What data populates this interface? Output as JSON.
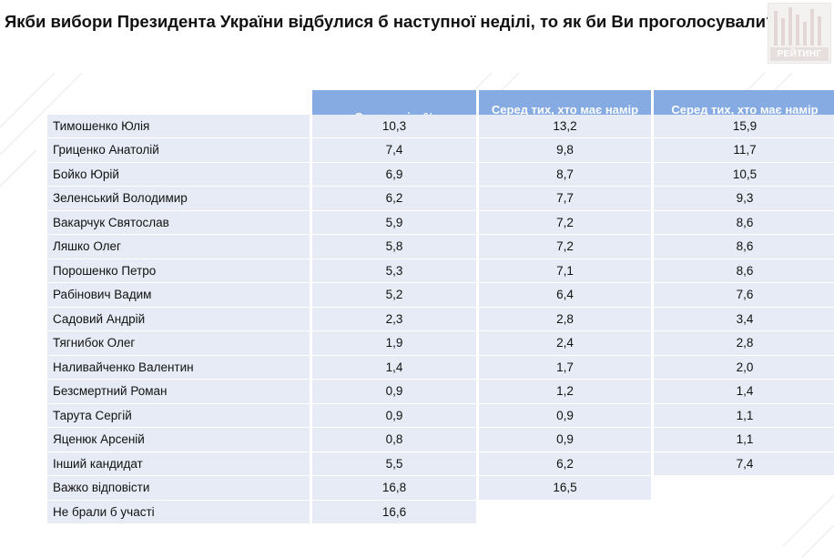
{
  "title": "Якби вибори Президента України відбулися б наступної неділі, то як би Ви проголосували?",
  "logo": {
    "text": "РЕЙТИНГ"
  },
  "table": {
    "headers": [
      "Серед усіх, %",
      "Серед тих, хто має намір голосувати",
      "Серед тих, хто має намір голосувати та визначився"
    ],
    "rows": [
      {
        "name": "Тимошенко Юлія",
        "all": "10,3",
        "voters": "13,2",
        "decided": "15,9"
      },
      {
        "name": "Гриценко Анатолій",
        "all": "7,4",
        "voters": "9,8",
        "decided": "11,7"
      },
      {
        "name": "Бойко Юрій",
        "all": "6,9",
        "voters": "8,7",
        "decided": "10,5"
      },
      {
        "name": "Зеленський Володимир",
        "all": "6,2",
        "voters": "7,7",
        "decided": "9,3"
      },
      {
        "name": "Вакарчук Святослав",
        "all": "5,9",
        "voters": "7,2",
        "decided": "8,6"
      },
      {
        "name": "Ляшко Олег",
        "all": "5,8",
        "voters": "7,2",
        "decided": "8,6"
      },
      {
        "name": "Порошенко Петро",
        "all": "5,3",
        "voters": "7,1",
        "decided": "8,6"
      },
      {
        "name": "Рабінович Вадим",
        "all": "5,2",
        "voters": "6,4",
        "decided": "7,6"
      },
      {
        "name": "Садовий Андрій",
        "all": "2,3",
        "voters": "2,8",
        "decided": "3,4"
      },
      {
        "name": "Тягнибок Олег",
        "all": "1,9",
        "voters": "2,4",
        "decided": "2,8"
      },
      {
        "name": "Наливайченко Валентин",
        "all": "1,4",
        "voters": "1,7",
        "decided": "2,0"
      },
      {
        "name": "Безсмертний Роман",
        "all": "0,9",
        "voters": "1,2",
        "decided": "1,4"
      },
      {
        "name": "Тарута Сергій",
        "all": "0,9",
        "voters": "0,9",
        "decided": "1,1"
      },
      {
        "name": "Яценюк Арсеній",
        "all": "0,8",
        "voters": "0,9",
        "decided": "1,1"
      },
      {
        "name": "Інший кандидат",
        "all": "5,5",
        "voters": "6,2",
        "decided": "7,4"
      },
      {
        "name": "Важко відповісти",
        "all": "16,8",
        "voters": "16,5",
        "decided": null
      },
      {
        "name": "Не брали б участі",
        "all": "16,6",
        "voters": null,
        "decided": null
      }
    ]
  }
}
